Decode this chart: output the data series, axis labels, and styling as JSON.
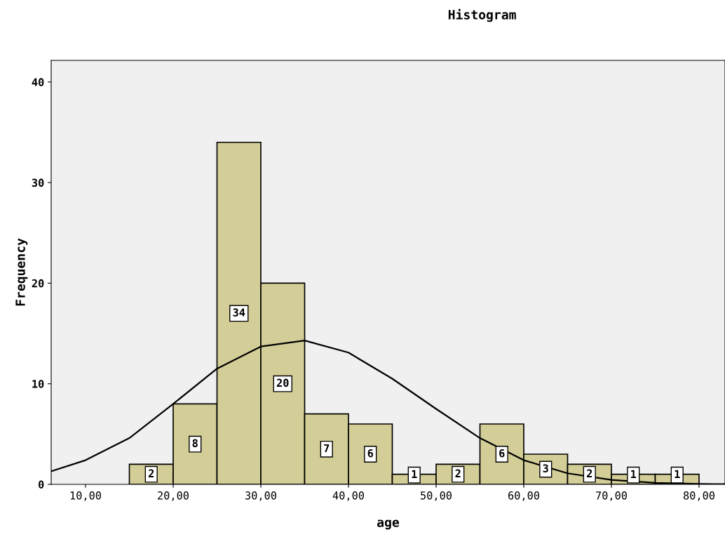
{
  "chart_data": {
    "type": "histogram",
    "title": "Histogram",
    "xlabel": "age",
    "ylabel": "Frequency",
    "bins": [
      15,
      20,
      25,
      30,
      35,
      40,
      45,
      50,
      55,
      60,
      65,
      70,
      75,
      80
    ],
    "values": [
      2,
      8,
      34,
      20,
      7,
      6,
      1,
      2,
      6,
      3,
      2,
      1,
      1
    ],
    "color": "#d3ce97",
    "value_labels": [
      "2",
      "8",
      "34",
      "20",
      "7",
      "6",
      "1",
      "2",
      "6",
      "3",
      "2",
      "1",
      "1"
    ],
    "series": [
      {
        "type": "line",
        "color": "#000000",
        "x": [
          6.08,
          10,
          15,
          20,
          25,
          30,
          35,
          40,
          45,
          50,
          55,
          60,
          65,
          70,
          75,
          80,
          82.96
        ],
        "values": [
          1.3,
          2.4,
          4.6,
          8,
          11.5,
          13.7,
          14.3,
          13.1,
          10.5,
          7.5,
          4.6,
          2.4,
          1.1,
          0.45,
          0.15,
          0.05,
          0.02
        ]
      }
    ],
    "xlim": [
      6.08,
      82.96
    ],
    "ylim": [
      0,
      42.15
    ],
    "xticks": [
      {
        "value": 10,
        "label": "10,00"
      },
      {
        "value": 20,
        "label": "20,00"
      },
      {
        "value": 30,
        "label": "30,00"
      },
      {
        "value": 40,
        "label": "40,00"
      },
      {
        "value": 50,
        "label": "50,00"
      },
      {
        "value": 60,
        "label": "60,00"
      },
      {
        "value": 70,
        "label": "70,00"
      },
      {
        "value": 80,
        "label": "80,00"
      }
    ],
    "yticks": [
      0,
      10,
      20,
      30,
      40
    ],
    "grid": false
  }
}
